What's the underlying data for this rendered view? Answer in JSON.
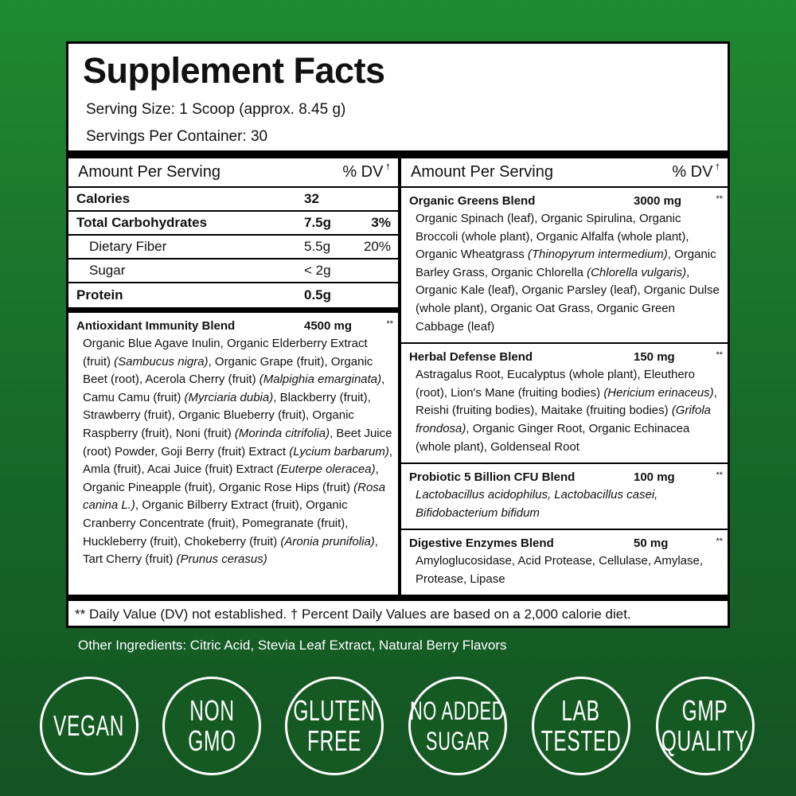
{
  "colors": {
    "background": "#1a7a2c",
    "badge_fill": "#155a22",
    "label_bg": "#ffffff",
    "rule": "#000000"
  },
  "title": "Supplement Facts",
  "serving_size": "Serving Size: 1 Scoop (approx. 8.45 g)",
  "servings_per_container": "Servings Per Container: 30",
  "left": {
    "amount_header": "Amount Per Serving",
    "dv_header": "% DV",
    "dagger": "†",
    "nutrients": [
      {
        "name": "Calories",
        "amount": "32",
        "dv": "",
        "bold": true
      },
      {
        "name": "Total Carbohydrates",
        "amount": "7.5g",
        "dv": "3%",
        "bold": true
      },
      {
        "name": "Dietary Fiber",
        "amount": "5.5g",
        "dv": "20%",
        "bold": false
      },
      {
        "name": "Sugar",
        "amount": "< 2g",
        "dv": "",
        "bold": false
      },
      {
        "name": "Protein",
        "amount": "0.5g",
        "dv": "",
        "bold": true
      }
    ],
    "blends": [
      {
        "name": "Antioxidant Immunity Blend",
        "amount": "4500 mg",
        "dv": "**",
        "ingredients": [
          {
            "t": "Organic Blue Agave Inulin, Organic Elderberry Extract (fruit) "
          },
          {
            "t": "(Sambucus nigra)",
            "i": true
          },
          {
            "t": ", Organic Grape (fruit), Organic Beet (root), Acerola Cherry (fruit) "
          },
          {
            "t": "(Malpighia emarginata)",
            "i": true
          },
          {
            "t": ", Camu Camu (fruit) "
          },
          {
            "t": "(Myrciaria dubia)",
            "i": true
          },
          {
            "t": ", Blackberry (fruit), Strawberry (fruit), Organic Blueberry (fruit), Organic Raspberry (fruit), Noni (fruit) "
          },
          {
            "t": "(Morinda citrifolia)",
            "i": true
          },
          {
            "t": ", Beet Juice (root) Powder, Goji Berry (fruit) Extract "
          },
          {
            "t": "(Lycium barbarum)",
            "i": true
          },
          {
            "t": ", Amla (fruit), Acai Juice (fruit) Extract "
          },
          {
            "t": "(Euterpe oleracea)",
            "i": true
          },
          {
            "t": ", Organic Pineapple (fruit), Organic Rose Hips (fruit) "
          },
          {
            "t": "(Rosa canina L.)",
            "i": true
          },
          {
            "t": ", Organic Bilberry Extract (fruit), Organic Cranberry Concentrate (fruit), Pomegranate (fruit), Huckleberry (fruit), Chokeberry (fruit) "
          },
          {
            "t": "(Aronia prunifolia)",
            "i": true
          },
          {
            "t": ", Tart Cherry (fruit) "
          },
          {
            "t": "(Prunus cerasus)",
            "i": true
          }
        ]
      }
    ]
  },
  "right": {
    "amount_header": "Amount Per Serving",
    "dv_header": "% DV",
    "dagger": "†",
    "blends": [
      {
        "name": "Organic Greens Blend",
        "amount": "3000 mg",
        "dv": "**",
        "ingredients": [
          {
            "t": "Organic Spinach (leaf), Organic Spirulina, Organic Broccoli (whole plant), Organic Alfalfa (whole plant), Organic Wheatgrass "
          },
          {
            "t": "(Thinopyrum intermedium)",
            "i": true
          },
          {
            "t": ", Organic Barley Grass, Organic Chlorella "
          },
          {
            "t": "(Chlorella vulgaris)",
            "i": true
          },
          {
            "t": ", Organic Kale (leaf), Organic Parsley (leaf), Organic Dulse (whole plant), Organic Oat Grass, Organic Green Cabbage (leaf)"
          }
        ]
      },
      {
        "name": "Herbal Defense Blend",
        "amount": "150 mg",
        "dv": "**",
        "ingredients": [
          {
            "t": "Astragalus Root, Eucalyptus (whole plant), Eleuthero (root), Lion's Mane (fruiting bodies) "
          },
          {
            "t": "(Hericium erinaceus)",
            "i": true
          },
          {
            "t": ", Reishi (fruiting bodies), Maitake (fruiting bodies) "
          },
          {
            "t": "(Grifola frondosa)",
            "i": true
          },
          {
            "t": ", Organic Ginger Root, Organic Echinacea (whole plant), Goldenseal Root"
          }
        ]
      },
      {
        "name": "Probiotic 5 Billion CFU Blend",
        "amount": "100 mg",
        "dv": "**",
        "ingredients": [
          {
            "t": "Lactobacillus acidophilus, Lactobacillus casei, Bifidobacterium bifidum",
            "i": true
          }
        ]
      },
      {
        "name": "Digestive Enzymes Blend",
        "amount": "50 mg",
        "dv": "**",
        "ingredients": [
          {
            "t": "Amyloglucosidase, Acid Protease, Cellulase, Amylase, Protease, Lipase"
          }
        ]
      }
    ]
  },
  "footnote": "** Daily Value (DV) not established. † Percent Daily Values are based on a 2,000 calorie diet.",
  "other_ingredients": "Other Ingredients: Citric Acid, Stevia Leaf Extract, Natural Berry Flavors",
  "badges": [
    {
      "lines": [
        "VEGAN"
      ]
    },
    {
      "lines": [
        "NON",
        "GMO"
      ]
    },
    {
      "lines": [
        "GLUTEN",
        "FREE"
      ]
    },
    {
      "lines": [
        "NO ADDED",
        "SUGAR"
      ]
    },
    {
      "lines": [
        "LAB",
        "TESTED"
      ]
    },
    {
      "lines": [
        "GMP",
        "QUALITY"
      ]
    }
  ]
}
